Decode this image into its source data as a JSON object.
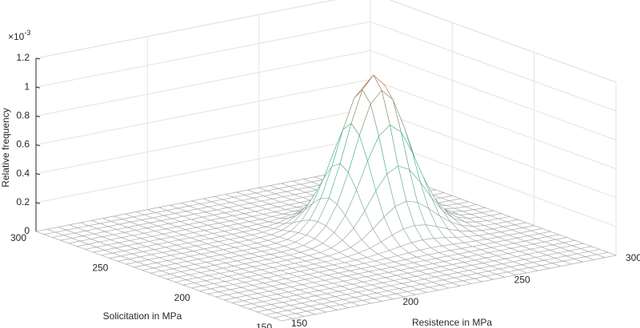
{
  "chart_data": {
    "type": "surface",
    "x_label": "Resistence in MPa",
    "y_label": "Solicitation in MPa",
    "z_label": "Relative frequency",
    "z_multiplier": "×10",
    "z_multiplier_exponent": "-3",
    "xlim": [
      150,
      300
    ],
    "ylim": [
      150,
      300
    ],
    "zlim": [
      0,
      1.2
    ],
    "xticks": [
      150,
      200,
      250,
      300
    ],
    "yticks": [
      150,
      200,
      250,
      300
    ],
    "zticks": [
      0,
      0.2,
      0.4,
      0.6,
      0.8,
      1,
      1.2
    ],
    "grid": true,
    "colormap": [
      "#a6a6a6",
      "#3cb38c",
      "#c8643c"
    ],
    "x": [
      150,
      155,
      160,
      165,
      170,
      175,
      180,
      185,
      190,
      195,
      200,
      205,
      210,
      215,
      220,
      225,
      230,
      235,
      240,
      245,
      250,
      255,
      260,
      265,
      270,
      275,
      280,
      285,
      290,
      295,
      300
    ],
    "y": [
      150,
      155,
      160,
      165,
      170,
      175,
      180,
      185,
      190,
      195,
      200,
      205,
      210,
      215,
      220,
      225,
      230,
      235,
      240,
      245,
      250,
      255,
      260,
      265,
      270,
      275,
      280,
      285,
      290,
      295,
      300
    ],
    "z": [
      [
        0,
        0,
        0,
        0,
        0,
        0,
        0,
        0,
        0,
        0,
        0,
        0,
        0,
        0,
        0,
        0,
        0,
        0,
        0,
        0,
        0,
        0,
        0,
        0,
        0,
        0,
        0,
        0,
        0,
        0,
        0
      ],
      [
        0,
        0,
        0,
        0,
        0,
        0,
        0,
        0,
        0,
        0,
        0,
        0,
        0,
        0,
        0,
        0,
        0,
        0,
        0,
        0,
        0,
        0,
        0,
        0,
        0,
        0,
        0,
        0,
        0,
        0,
        0
      ],
      [
        0,
        0,
        0,
        0,
        0,
        0,
        0,
        0,
        0,
        0,
        0,
        0,
        0,
        0,
        0,
        0,
        0,
        0,
        0,
        0,
        0,
        0,
        0,
        0,
        0,
        0,
        0,
        0,
        0,
        0,
        0
      ],
      [
        0,
        0,
        0,
        0,
        0,
        0,
        0,
        0,
        0,
        0,
        0,
        0,
        0,
        0,
        0,
        0,
        0,
        0,
        0,
        0,
        0,
        0,
        0,
        0,
        0,
        0,
        0,
        0,
        0,
        0,
        0
      ],
      [
        0,
        0,
        0,
        0,
        0,
        0,
        0,
        0,
        0,
        0,
        0,
        0,
        0,
        0,
        0,
        0,
        0,
        0,
        0,
        0,
        0,
        0,
        0,
        0,
        0,
        0,
        0,
        0,
        0,
        0,
        0
      ],
      [
        0,
        0,
        0,
        0,
        0,
        0,
        0,
        0,
        0,
        0,
        0,
        0,
        0,
        0,
        0,
        0,
        0,
        0,
        0,
        0,
        0,
        0,
        0,
        0,
        0,
        0,
        0,
        0,
        0,
        0,
        0
      ],
      [
        0,
        0,
        0,
        0,
        0,
        0,
        0,
        0,
        0,
        0,
        0,
        0,
        0,
        0,
        0,
        0,
        0,
        0,
        0,
        0,
        0,
        0,
        0,
        0,
        0,
        0,
        0,
        0,
        0,
        0,
        0
      ],
      [
        0,
        0,
        0,
        0,
        0,
        0,
        0,
        0,
        0,
        0,
        0,
        0,
        0,
        0,
        0,
        0,
        0,
        0.001,
        0.001,
        0.001,
        0.001,
        0.001,
        0.001,
        0.001,
        0,
        0,
        0,
        0,
        0,
        0,
        0
      ],
      [
        0,
        0,
        0,
        0,
        0,
        0,
        0,
        0,
        0,
        0,
        0,
        0,
        0,
        0,
        0,
        0.001,
        0.001,
        0.002,
        0.004,
        0.005,
        0.005,
        0.005,
        0.004,
        0.002,
        0.001,
        0.001,
        0,
        0,
        0,
        0,
        0
      ],
      [
        0,
        0,
        0,
        0,
        0,
        0,
        0,
        0,
        0,
        0,
        0,
        0,
        0,
        0,
        0.001,
        0.002,
        0.005,
        0.008,
        0.013,
        0.016,
        0.018,
        0.016,
        0.013,
        0.008,
        0.005,
        0.002,
        0.001,
        0,
        0,
        0,
        0
      ],
      [
        0,
        0,
        0,
        0,
        0,
        0,
        0,
        0,
        0,
        0,
        0,
        0,
        0,
        0.001,
        0.003,
        0.006,
        0.014,
        0.024,
        0.037,
        0.048,
        0.052,
        0.048,
        0.037,
        0.024,
        0.014,
        0.006,
        0.003,
        0.001,
        0,
        0,
        0
      ],
      [
        0,
        0,
        0,
        0,
        0,
        0,
        0,
        0,
        0,
        0,
        0,
        0,
        0.001,
        0.002,
        0.006,
        0.016,
        0.034,
        0.062,
        0.094,
        0.121,
        0.131,
        0.121,
        0.094,
        0.062,
        0.034,
        0.016,
        0.006,
        0.002,
        0.001,
        0,
        0
      ],
      [
        0,
        0,
        0,
        0,
        0,
        0,
        0,
        0,
        0,
        0,
        0,
        0,
        0.001,
        0.005,
        0.014,
        0.034,
        0.073,
        0.131,
        0.199,
        0.256,
        0.279,
        0.256,
        0.199,
        0.131,
        0.073,
        0.034,
        0.014,
        0.005,
        0.001,
        0,
        0
      ],
      [
        0,
        0,
        0,
        0,
        0,
        0,
        0,
        0,
        0,
        0,
        0,
        0.001,
        0.002,
        0.008,
        0.024,
        0.062,
        0.131,
        0.236,
        0.359,
        0.462,
        0.502,
        0.462,
        0.359,
        0.236,
        0.131,
        0.062,
        0.024,
        0.008,
        0.002,
        0.001,
        0
      ],
      [
        0,
        0,
        0,
        0,
        0,
        0,
        0,
        0,
        0,
        0,
        0,
        0.001,
        0.004,
        0.013,
        0.037,
        0.094,
        0.199,
        0.359,
        0.547,
        0.703,
        0.765,
        0.703,
        0.547,
        0.359,
        0.199,
        0.094,
        0.037,
        0.013,
        0.004,
        0.001,
        0
      ],
      [
        0,
        0,
        0,
        0,
        0,
        0,
        0,
        0,
        0,
        0,
        0,
        0.001,
        0.005,
        0.016,
        0.048,
        0.121,
        0.256,
        0.462,
        0.703,
        0.905,
        0.984,
        0.905,
        0.703,
        0.462,
        0.256,
        0.121,
        0.048,
        0.016,
        0.005,
        0.001,
        0
      ],
      [
        0,
        0,
        0,
        0,
        0,
        0,
        0,
        0,
        0,
        0,
        0,
        0.001,
        0.005,
        0.018,
        0.052,
        0.131,
        0.279,
        0.502,
        0.765,
        0.984,
        1.07,
        0.984,
        0.765,
        0.502,
        0.279,
        0.131,
        0.052,
        0.018,
        0.005,
        0.001,
        0
      ],
      [
        0,
        0,
        0,
        0,
        0,
        0,
        0,
        0,
        0,
        0,
        0,
        0.001,
        0.005,
        0.016,
        0.048,
        0.121,
        0.256,
        0.462,
        0.703,
        0.905,
        0.984,
        0.905,
        0.703,
        0.462,
        0.256,
        0.121,
        0.048,
        0.016,
        0.005,
        0.001,
        0
      ],
      [
        0,
        0,
        0,
        0,
        0,
        0,
        0,
        0,
        0,
        0,
        0,
        0.001,
        0.004,
        0.013,
        0.037,
        0.094,
        0.199,
        0.359,
        0.547,
        0.703,
        0.765,
        0.703,
        0.547,
        0.359,
        0.199,
        0.094,
        0.037,
        0.013,
        0.004,
        0.001,
        0
      ],
      [
        0,
        0,
        0,
        0,
        0,
        0,
        0,
        0,
        0,
        0,
        0,
        0.001,
        0.002,
        0.008,
        0.024,
        0.062,
        0.131,
        0.236,
        0.359,
        0.462,
        0.502,
        0.462,
        0.359,
        0.236,
        0.131,
        0.062,
        0.024,
        0.008,
        0.002,
        0.001,
        0
      ],
      [
        0,
        0,
        0,
        0,
        0,
        0,
        0,
        0,
        0,
        0,
        0,
        0,
        0.001,
        0.005,
        0.014,
        0.034,
        0.073,
        0.131,
        0.199,
        0.256,
        0.279,
        0.256,
        0.199,
        0.131,
        0.073,
        0.034,
        0.014,
        0.005,
        0.001,
        0,
        0
      ],
      [
        0,
        0,
        0,
        0,
        0,
        0,
        0,
        0,
        0,
        0,
        0,
        0,
        0.001,
        0.002,
        0.006,
        0.016,
        0.034,
        0.062,
        0.094,
        0.121,
        0.131,
        0.121,
        0.094,
        0.062,
        0.034,
        0.016,
        0.006,
        0.002,
        0.001,
        0,
        0
      ],
      [
        0,
        0,
        0,
        0,
        0,
        0,
        0,
        0,
        0,
        0,
        0,
        0,
        0,
        0.001,
        0.003,
        0.006,
        0.014,
        0.024,
        0.037,
        0.048,
        0.052,
        0.048,
        0.037,
        0.024,
        0.014,
        0.006,
        0.003,
        0.001,
        0,
        0,
        0
      ],
      [
        0,
        0,
        0,
        0,
        0,
        0,
        0,
        0,
        0,
        0,
        0,
        0,
        0,
        0,
        0.001,
        0.002,
        0.005,
        0.008,
        0.013,
        0.016,
        0.018,
        0.016,
        0.013,
        0.008,
        0.005,
        0.002,
        0.001,
        0,
        0,
        0,
        0
      ],
      [
        0,
        0,
        0,
        0,
        0,
        0,
        0,
        0,
        0,
        0,
        0,
        0,
        0,
        0,
        0,
        0.001,
        0.001,
        0.002,
        0.004,
        0.005,
        0.005,
        0.005,
        0.004,
        0.002,
        0.001,
        0.001,
        0,
        0,
        0,
        0,
        0
      ],
      [
        0,
        0,
        0,
        0,
        0,
        0,
        0,
        0,
        0,
        0,
        0,
        0,
        0,
        0,
        0,
        0,
        0,
        0.001,
        0.001,
        0.001,
        0.001,
        0.001,
        0.001,
        0.001,
        0,
        0,
        0,
        0,
        0,
        0,
        0
      ],
      [
        0,
        0,
        0,
        0,
        0,
        0,
        0,
        0,
        0,
        0,
        0,
        0,
        0,
        0,
        0,
        0,
        0,
        0,
        0,
        0,
        0,
        0,
        0,
        0,
        0,
        0,
        0,
        0,
        0,
        0,
        0
      ],
      [
        0,
        0,
        0,
        0,
        0,
        0,
        0,
        0,
        0,
        0,
        0,
        0,
        0,
        0,
        0,
        0,
        0,
        0,
        0,
        0,
        0,
        0,
        0,
        0,
        0,
        0,
        0,
        0,
        0,
        0,
        0
      ],
      [
        0,
        0,
        0,
        0,
        0,
        0,
        0,
        0,
        0,
        0,
        0,
        0,
        0,
        0,
        0,
        0,
        0,
        0,
        0,
        0,
        0,
        0,
        0,
        0,
        0,
        0,
        0,
        0,
        0,
        0,
        0
      ],
      [
        0,
        0,
        0,
        0,
        0,
        0,
        0,
        0,
        0,
        0,
        0,
        0,
        0,
        0,
        0,
        0,
        0,
        0,
        0,
        0,
        0,
        0,
        0,
        0,
        0,
        0,
        0,
        0,
        0,
        0,
        0
      ],
      [
        0,
        0,
        0,
        0,
        0,
        0,
        0,
        0,
        0,
        0,
        0,
        0,
        0,
        0,
        0,
        0,
        0,
        0,
        0,
        0,
        0,
        0,
        0,
        0,
        0,
        0,
        0,
        0,
        0,
        0,
        0
      ]
    ]
  }
}
